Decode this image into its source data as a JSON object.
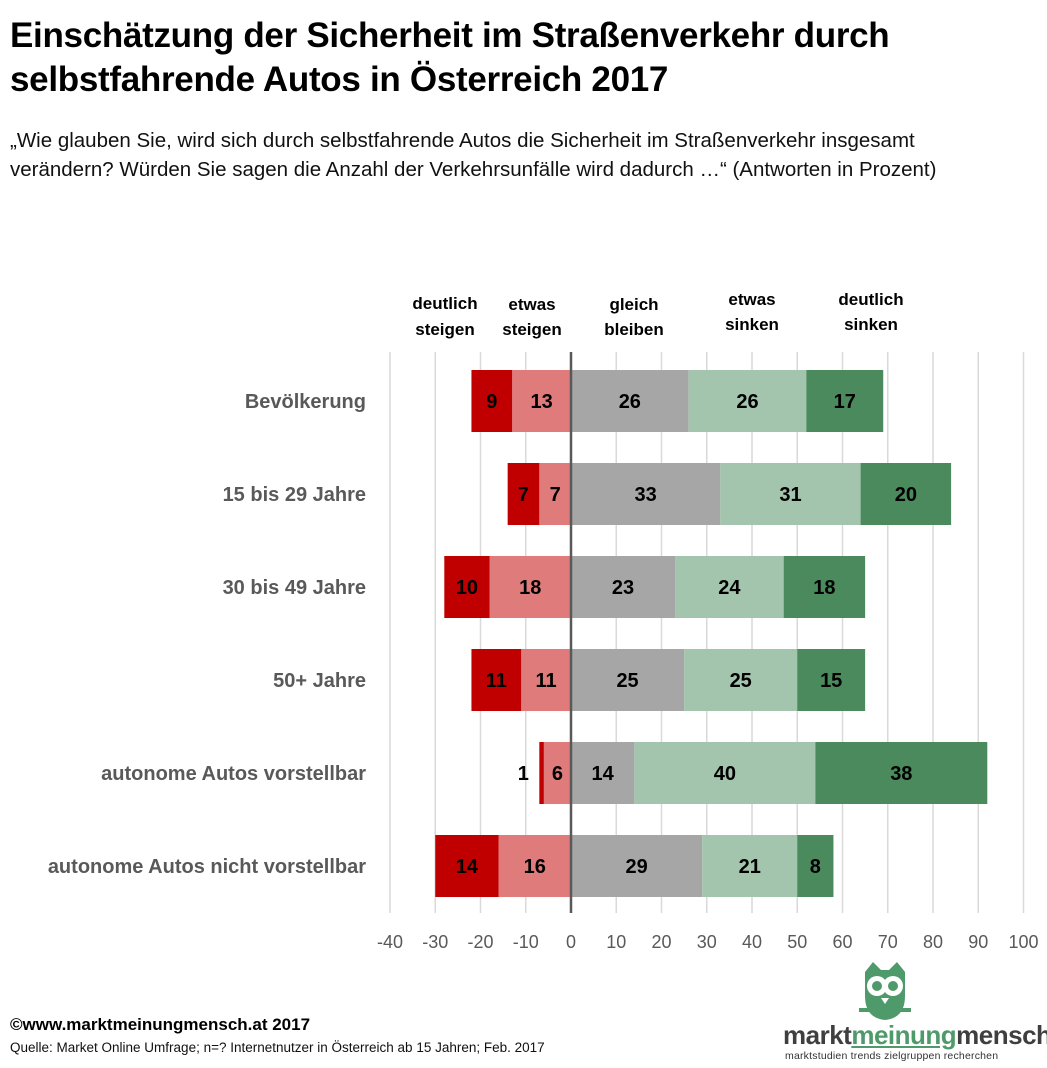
{
  "header": {
    "title": "Einschätzung der Sicherheit im Straßenverkehr durch selbstfahrende Autos in Österreich 2017",
    "subtitle": "„Wie glauben Sie, wird sich durch selbstfahrende Autos die Sicherheit im Straßenverkehr  insgesamt verändern? Würden Sie sagen die Anzahl der Verkehrsunfälle wird dadurch …“ (Antworten in Prozent)"
  },
  "colors": {
    "deutlich_steigen": "#c00000",
    "etwas_steigen": "#e07b7b",
    "gleich_bleiben": "#a6a6a6",
    "etwas_sinken": "#a3c4ad",
    "deutlich_sinken": "#4a8a5c",
    "grid": "#d9d9d9",
    "zero_line": "#595959",
    "category_label": "#595959"
  },
  "chart_data": {
    "type": "bar",
    "orientation": "horizontal",
    "stacking": "diverging",
    "categories": [
      "Bevölkerung",
      "15 bis 29 Jahre",
      "30 bis 49 Jahre",
      "50+ Jahre",
      "autonome Autos vorstellbar",
      "autonome Autos nicht vorstellbar"
    ],
    "series": [
      {
        "name": "deutlich steigen",
        "values": [
          9,
          7,
          10,
          11,
          1,
          14
        ],
        "side": "negative"
      },
      {
        "name": "etwas steigen",
        "values": [
          13,
          7,
          18,
          11,
          6,
          16
        ],
        "side": "negative"
      },
      {
        "name": "gleich bleiben",
        "values": [
          26,
          33,
          23,
          25,
          14,
          29
        ],
        "side": "positive"
      },
      {
        "name": "etwas sinken",
        "values": [
          26,
          31,
          24,
          25,
          40,
          21
        ],
        "side": "positive"
      },
      {
        "name": "deutlich sinken",
        "values": [
          17,
          20,
          18,
          15,
          38,
          8
        ],
        "side": "positive"
      }
    ],
    "legend_labels": [
      [
        "deutlich",
        "steigen"
      ],
      [
        "etwas",
        "steigen"
      ],
      [
        "gleich",
        "bleiben"
      ],
      [
        "etwas",
        "sinken"
      ],
      [
        "deutlich",
        "sinken"
      ]
    ],
    "xlim": [
      -40,
      100
    ],
    "xticks": [
      -40,
      -30,
      -20,
      -10,
      0,
      10,
      20,
      30,
      40,
      50,
      60,
      70,
      80,
      90,
      100
    ],
    "grid": true,
    "legend_position": "top"
  },
  "footer": {
    "copyright": "©www.marktmeinungmensch.at 2017",
    "source": "Quelle: Market Online Umfrage; n=? Internetnutzer in Österreich ab 15 Jahren; Feb. 2017"
  },
  "logo": {
    "word1": "markt",
    "word2": "meinung",
    "word3": "mensch",
    "tagline": "marktstudien trends zielgruppen recherchen"
  }
}
